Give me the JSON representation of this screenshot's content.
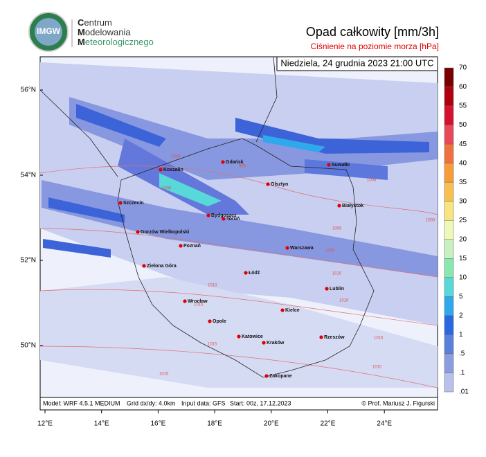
{
  "header": {
    "logo": "IMGW",
    "org_lines": [
      "Centrum",
      "Modelowania",
      "Meteorologicznego"
    ],
    "title": "Opad całkowity [mm/3h]",
    "subtitle": "Ciśnienie na poziomie morza [hPa]",
    "date": "Niedziela, 24 grudnia 2023 21:00 UTC"
  },
  "map": {
    "lat_labels": [
      "56°N",
      "54°N",
      "52°N",
      "50°N"
    ],
    "lon_labels": [
      "12°E",
      "14°E",
      "16°E",
      "18°E",
      "20°E",
      "22°E",
      "24°E"
    ],
    "cities": [
      "Koszalin",
      "Gdańsk",
      "Suwałki",
      "Olsztyn",
      "Szczecin",
      "Białystok",
      "Bydgoszcz",
      "Toruń",
      "Gorzów Wielkopolski",
      "Poznań",
      "Warszawa",
      "Zielona Góra",
      "Łódź",
      "Lublin",
      "Wrocław",
      "Kielce",
      "Opole",
      "Katowice",
      "Rzeszów",
      "Kraków",
      "Zakopane"
    ],
    "isobar_labels": [
      "1000",
      "1000",
      "995",
      "1005",
      "1000",
      "1005",
      "1005",
      "1010",
      "1010",
      "1010",
      "1015",
      "1015",
      "1010",
      "1015",
      "1015"
    ]
  },
  "colorbar": {
    "labels": [
      "70",
      "60",
      "55",
      "50",
      "45",
      "40",
      "35",
      "30",
      "25",
      "20",
      "15",
      "10",
      "5",
      "2",
      "1",
      ".5",
      ".1",
      ".01"
    ],
    "colors": [
      "#7a0000",
      "#b00010",
      "#d81030",
      "#e84858",
      "#f07040",
      "#f89c38",
      "#f8c050",
      "#f8e480",
      "#f0f8b8",
      "#c8f0c0",
      "#88e8b0",
      "#58d8d8",
      "#30a8ec",
      "#2868e0",
      "#5880dc",
      "#8c9ce0",
      "#b8c0ec",
      "#dde1f6"
    ]
  },
  "footer": {
    "model": "Model: WRF 4.5.1 MEDIUM",
    "grid": "Grid dx/dy: 4.0km",
    "input": "Input data: GFS",
    "start": "Start: 00z, 17.12.2023",
    "credit": "© Prof. Mariusz J. Figurski"
  }
}
